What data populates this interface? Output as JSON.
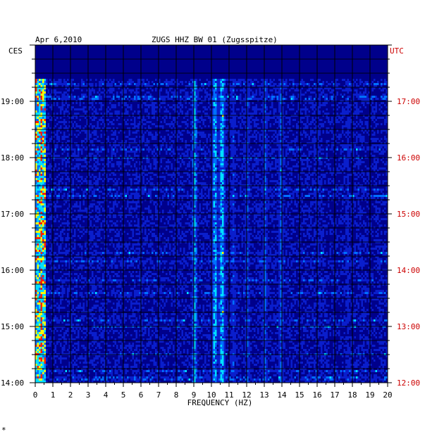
{
  "header": {
    "date": "Apr 6,2010",
    "station": "ZUGS HHZ BW 01 (Zugsspitze)"
  },
  "left_axis": {
    "timezone": "CES",
    "ticks": [
      "14:00",
      "15:00",
      "16:00",
      "17:00",
      "18:00",
      "19:00"
    ]
  },
  "right_axis": {
    "timezone": "UTC",
    "ticks": [
      "12:00",
      "13:00",
      "14:00",
      "15:00",
      "16:00",
      "17:00"
    ]
  },
  "x_axis": {
    "label": "FREQUENCY (HZ)",
    "ticks": [
      "0",
      "1",
      "2",
      "3",
      "4",
      "5",
      "6",
      "7",
      "8",
      "9",
      "10",
      "11",
      "12",
      "13",
      "14",
      "15",
      "16",
      "17",
      "18",
      "19",
      "20"
    ]
  },
  "footer_mark": "*",
  "colors": {
    "background": "#00008b",
    "low": "#0a1ecc",
    "mid": "#0070ff",
    "high": "#00e0ff",
    "hot": "#ffff00",
    "peak": "#ff2000"
  },
  "chart_data": {
    "type": "heatmap",
    "xlabel": "FREQUENCY (HZ)",
    "xlim": [
      0,
      20
    ],
    "ylim_cest_hours": [
      14.0,
      20.0
    ],
    "data_end_cest_hours": 19.4,
    "persistent_bands_hz": [
      {
        "center": 0.3,
        "strength": 1.0
      },
      {
        "center": 9.0,
        "strength": 0.75
      },
      {
        "center": 10.15,
        "strength": 0.85
      },
      {
        "center": 10.55,
        "strength": 0.9
      },
      {
        "center": 11.2,
        "strength": 0.45
      },
      {
        "center": 12.0,
        "strength": 0.5
      },
      {
        "center": 13.0,
        "strength": 0.55
      },
      {
        "center": 13.9,
        "strength": 0.6
      },
      {
        "center": 17.7,
        "strength": 0.4
      }
    ]
  }
}
